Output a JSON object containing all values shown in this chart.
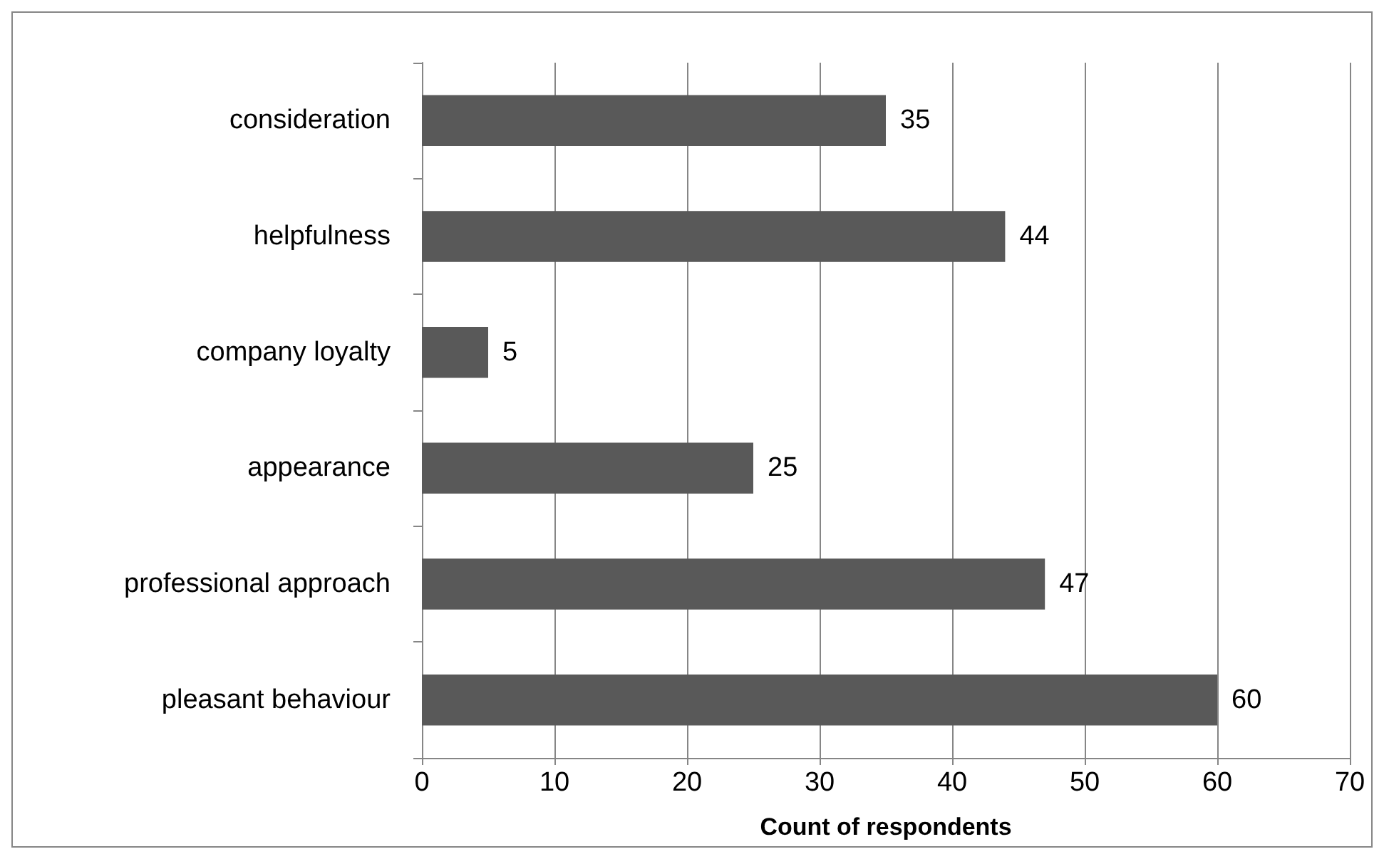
{
  "chart_data": {
    "type": "bar",
    "orientation": "horizontal",
    "categories": [
      "consideration",
      "helpfulness",
      "company loyalty",
      "appearance",
      "professional approach",
      "pleasant behaviour"
    ],
    "values": [
      35,
      44,
      5,
      25,
      47,
      60
    ],
    "color": "#595959",
    "xlabel": "Count of respondents",
    "xlim": [
      0,
      70
    ],
    "xticks": [
      0,
      10,
      20,
      30,
      40,
      50,
      60,
      70
    ],
    "grid": "x",
    "data_labels": true
  }
}
